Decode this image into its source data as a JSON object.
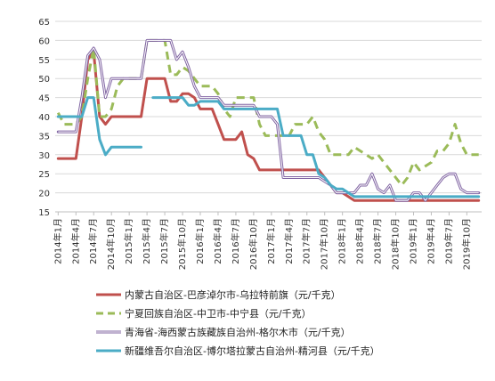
{
  "chart_data": {
    "type": "line",
    "x": [
      "2014年1月",
      "2014年2月",
      "2014年3月",
      "2014年4月",
      "2014年5月",
      "2014年6月",
      "2014年7月",
      "2014年8月",
      "2014年9月",
      "2014年10月",
      "2014年11月",
      "2014年12月",
      "2015年1月",
      "2015年2月",
      "2015年3月",
      "2015年4月",
      "2015年5月",
      "2015年6月",
      "2015年7月",
      "2015年8月",
      "2015年9月",
      "2015年10月",
      "2015年11月",
      "2015年12月",
      "2016年1月",
      "2016年2月",
      "2016年3月",
      "2016年4月",
      "2016年5月",
      "2016年6月",
      "2016年7月",
      "2016年8月",
      "2016年9月",
      "2016年10月",
      "2016年11月",
      "2016年12月",
      "2017年1月",
      "2017年2月",
      "2017年3月",
      "2017年4月",
      "2017年5月",
      "2017年6月",
      "2017年7月",
      "2017年8月",
      "2017年9月",
      "2017年10月",
      "2017年11月",
      "2017年12月",
      "2018年1月",
      "2018年2月",
      "2018年3月",
      "2018年4月",
      "2018年5月",
      "2018年6月",
      "2018年7月",
      "2018年8月",
      "2018年9月",
      "2018年10月",
      "2018年11月",
      "2018年12月",
      "2019年1月",
      "2019年2月",
      "2019年3月",
      "2019年4月",
      "2019年5月",
      "2019年6月",
      "2019年7月",
      "2019年8月",
      "2019年9月",
      "2019年10月",
      "2019年11月",
      "2019年12月"
    ],
    "tick_labels": [
      "2014年1月",
      "2014年4月",
      "2014年7月",
      "2014年10月",
      "2015年1月",
      "2015年4月",
      "2015年7月",
      "2015年10月",
      "2016年1月",
      "2016年4月",
      "2016年7月",
      "2016年10月",
      "2017年1月",
      "2017年4月",
      "2017年7月",
      "2017年10月",
      "2018年1月",
      "2018年4月",
      "2018年7月",
      "2018年10月",
      "2019年1月",
      "2019年4月",
      "2019年7月",
      "2019年10月"
    ],
    "ylim": [
      15,
      65
    ],
    "yticks": [
      15,
      20,
      25,
      30,
      35,
      40,
      45,
      50,
      55,
      60,
      65
    ],
    "grid": true,
    "legend_position": "bottom",
    "series": [
      {
        "name": "内蒙古自治区-巴彦淖尔市-乌拉特前旗（元/千克）",
        "color": "#c0504d",
        "style": "solid",
        "values": [
          29,
          29,
          29,
          29,
          40,
          55,
          57,
          40,
          38,
          40,
          40,
          40,
          40,
          40,
          40,
          50,
          50,
          50,
          50,
          44,
          44,
          46,
          46,
          45,
          42,
          42,
          42,
          38,
          34,
          34,
          34,
          36,
          30,
          29,
          26,
          26,
          26,
          26,
          26,
          26,
          26,
          26,
          26,
          26,
          26,
          24,
          22,
          20,
          20,
          19,
          18,
          18,
          18,
          18,
          18,
          18,
          18,
          18,
          18,
          18,
          18,
          18,
          18,
          18,
          18,
          18,
          18,
          18,
          18,
          18,
          18,
          18
        ]
      },
      {
        "name": "宁夏回族自治区-中卫市-中宁县（元/千克）",
        "color": "#9bbb59",
        "style": "dashed",
        "values": [
          41,
          38,
          38,
          38,
          40,
          50,
          58,
          40,
          40,
          42,
          48,
          50,
          50,
          50,
          50,
          60,
          60,
          60,
          60,
          51,
          51,
          53,
          52,
          50,
          48,
          48,
          48,
          46,
          42,
          40,
          45,
          45,
          45,
          45,
          38,
          35,
          35,
          35,
          35,
          35,
          38,
          38,
          38,
          40,
          36,
          34,
          30,
          30,
          30,
          30,
          32,
          31,
          30,
          29,
          30,
          28,
          26,
          24,
          22,
          24,
          28,
          26,
          27,
          28,
          31,
          31,
          33,
          38,
          33,
          30,
          30,
          30
        ]
      },
      {
        "name": "青海省-海西蒙古族藏族自治州-格尔木市（元/千克）",
        "color": "#8064a2",
        "style": "solid",
        "values": [
          36,
          36,
          36,
          36,
          45,
          56,
          58,
          55,
          45,
          50,
          50,
          50,
          50,
          50,
          50,
          60,
          60,
          60,
          60,
          60,
          55,
          57,
          53,
          48,
          45,
          45,
          45,
          45,
          43,
          43,
          43,
          43,
          43,
          43,
          40,
          40,
          40,
          38,
          24,
          24,
          24,
          24,
          24,
          24,
          24,
          23,
          22,
          20,
          20,
          20,
          20,
          22,
          22,
          25,
          21,
          20,
          22,
          18,
          18,
          18,
          20,
          20,
          18,
          20,
          22,
          24,
          25,
          25,
          21,
          20,
          20,
          20
        ]
      },
      {
        "name": "新疆维吾尔自治区-博尔塔拉蒙古自治州-精河县（元/千克）",
        "color": "#4bacc6",
        "style": "solid",
        "values": [
          40,
          40,
          40,
          40,
          40,
          45,
          45,
          34,
          30,
          32,
          32,
          32,
          32,
          32,
          32,
          null,
          45,
          45,
          45,
          45,
          45,
          45,
          43,
          43,
          44,
          44,
          44,
          44,
          42,
          42,
          42,
          42,
          42,
          42,
          42,
          42,
          42,
          42,
          35,
          35,
          35,
          35,
          30,
          30,
          25,
          24,
          22,
          21,
          21,
          20,
          19,
          19,
          19,
          19,
          19,
          19,
          19,
          19,
          19,
          19,
          19,
          19,
          19,
          19,
          19,
          19,
          19,
          19,
          19,
          19,
          19,
          19
        ]
      }
    ]
  }
}
